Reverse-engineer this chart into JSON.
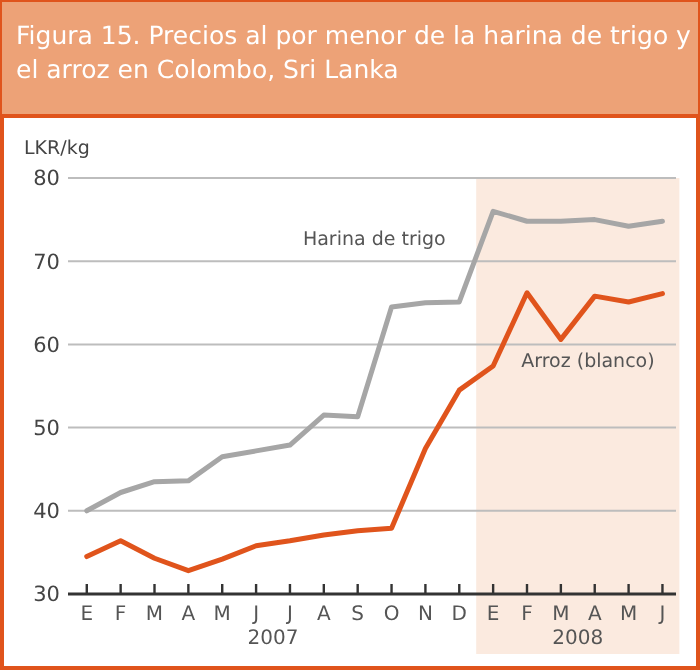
{
  "chart_data": {
    "type": "line",
    "title": "Figura 15. Precios al por menor de la harina de trigo y el arroz en Colombo, Sri Lanka",
    "ylabel": "LKR/kg",
    "categories": [
      "E",
      "F",
      "M",
      "A",
      "M",
      "J",
      "J",
      "A",
      "S",
      "O",
      "N",
      "D",
      "E",
      "F",
      "M",
      "A",
      "M",
      "J"
    ],
    "series": [
      {
        "name": "Harina de trigo",
        "color": "#a6a6a6",
        "values": [
          40,
          42.2,
          43.5,
          43.6,
          46.5,
          47.2,
          47.9,
          51.5,
          51.3,
          64.5,
          65,
          65.1,
          76,
          74.8,
          74.8,
          75,
          74.2,
          74.8
        ]
      },
      {
        "name": "Arroz (blanco)",
        "color": "#e0541c",
        "values": [
          34.5,
          36.4,
          34.3,
          32.8,
          34.2,
          35.8,
          36.4,
          37.1,
          37.6,
          37.9,
          47.5,
          54.5,
          57.4,
          66.2,
          60.6,
          65.8,
          65.1,
          66.1
        ]
      }
    ],
    "ylim": [
      30,
      80
    ],
    "yticks": [
      30,
      40,
      50,
      60,
      70,
      80
    ],
    "grid": "y",
    "marker": "none",
    "line_style": "solid",
    "annotations": [
      "2007",
      "2008"
    ]
  }
}
